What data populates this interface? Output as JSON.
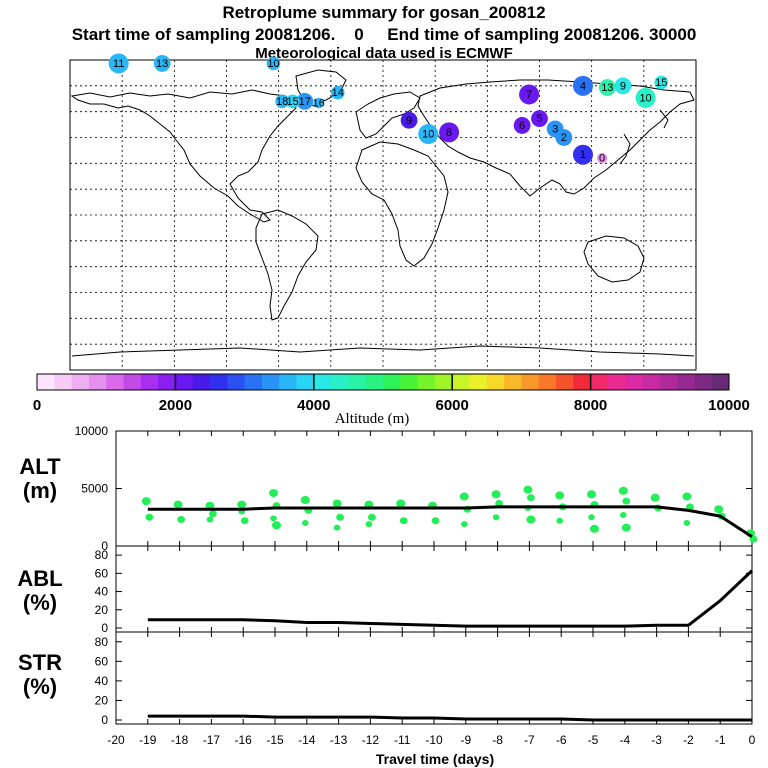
{
  "header": {
    "title": "Retroplume summary for gosan_200812",
    "line2": "Start time of sampling 20081206.    0     End time of sampling 20081206. 30000",
    "line3": "Meteorological data used is ECMWF"
  },
  "colors": {
    "marker_green": "#22ee55",
    "line": "#000000"
  },
  "chart_data": [
    {
      "type": "scatter",
      "name": "retroplume-map",
      "title": "Retroplume summary for gosan_200812",
      "description_of_points": "cluster centroids labelled by days back",
      "points": [
        {
          "label": "11",
          "lon": -152,
          "lat": 88,
          "alt": 3500,
          "size": 5
        },
        {
          "label": "13",
          "lon": -127,
          "lat": 88,
          "alt": 3600,
          "size": 4
        },
        {
          "label": "10",
          "lon": -63,
          "lat": 88,
          "alt": 3700,
          "size": 3
        },
        {
          "label": "14",
          "lon": -26,
          "lat": 71,
          "alt": 3700,
          "size": 3
        },
        {
          "label": "17",
          "lon": -45,
          "lat": 66,
          "alt": 3400,
          "size": 4
        },
        {
          "label": "15",
          "lon": -52,
          "lat": 66,
          "alt": 3800,
          "size": 3
        },
        {
          "label": "18",
          "lon": -58,
          "lat": 66,
          "alt": 3500,
          "size": 3
        },
        {
          "label": "16",
          "lon": -37,
          "lat": 65,
          "alt": 3600,
          "size": 2
        },
        {
          "label": "9",
          "lon": 15,
          "lat": 55,
          "alt": 2400,
          "size": 4
        },
        {
          "label": "10",
          "lon": 26,
          "lat": 47,
          "alt": 3600,
          "size": 5
        },
        {
          "label": "8",
          "lon": 38,
          "lat": 48,
          "alt": 2000,
          "size": 5
        },
        {
          "label": "7",
          "lon": 84,
          "lat": 70,
          "alt": 2000,
          "size": 5
        },
        {
          "label": "6",
          "lon": 80,
          "lat": 52,
          "alt": 2000,
          "size": 4
        },
        {
          "label": "5",
          "lon": 90,
          "lat": 56,
          "alt": 2100,
          "size": 4
        },
        {
          "label": "4",
          "lon": 115,
          "lat": 75,
          "alt": 3000,
          "size": 5
        },
        {
          "label": "3",
          "lon": 99,
          "lat": 50,
          "alt": 3300,
          "size": 4
        },
        {
          "label": "2",
          "lon": 104,
          "lat": 45,
          "alt": 3400,
          "size": 4
        },
        {
          "label": "1",
          "lon": 115,
          "lat": 35,
          "alt": 2500,
          "size": 5
        },
        {
          "label": "0",
          "lon": 126,
          "lat": 33,
          "alt": 900,
          "size": 2
        },
        {
          "label": "13",
          "lon": 129,
          "lat": 74,
          "alt": 4600,
          "size": 4
        },
        {
          "label": "9",
          "lon": 138,
          "lat": 75,
          "alt": 4200,
          "size": 4
        },
        {
          "label": "10",
          "lon": 151,
          "lat": 68,
          "alt": 4300,
          "size": 5
        },
        {
          "label": "15",
          "lon": 160,
          "lat": 77,
          "alt": 4200,
          "size": 3
        }
      ],
      "colorbar": {
        "ticks": [
          "0",
          "2000",
          "4000",
          "6000",
          "8000",
          "10000"
        ],
        "title": "Altitude (m)",
        "range": [
          0,
          10000
        ]
      }
    },
    {
      "type": "scatter",
      "name": "alt-panel",
      "ylabel": "ALT\n(m)",
      "ylabel_lines": [
        "ALT",
        "(m)"
      ],
      "ylim": [
        0,
        10000
      ],
      "yticks": [
        "10000",
        "5000",
        "0"
      ],
      "x": [
        -19,
        -18,
        -17,
        -16,
        -15,
        -14,
        -13,
        -12,
        -11,
        -10,
        -9,
        -8,
        -7,
        -6,
        -5,
        -4,
        -3,
        -2,
        -1,
        0
      ],
      "mean": [
        3200,
        3200,
        3200,
        3200,
        3300,
        3300,
        3300,
        3300,
        3300,
        3300,
        3300,
        3400,
        3400,
        3400,
        3400,
        3400,
        3400,
        3100,
        2600,
        800
      ],
      "scatter_clusters": [
        {
          "x": -19,
          "alts": [
            3900,
            2500
          ]
        },
        {
          "x": -18,
          "alts": [
            3600,
            2300
          ]
        },
        {
          "x": -17,
          "alts": [
            3500,
            2800,
            2300
          ]
        },
        {
          "x": -16,
          "alts": [
            3600,
            2200,
            3000
          ]
        },
        {
          "x": -15,
          "alts": [
            4600,
            3500,
            2400,
            1800
          ]
        },
        {
          "x": -14,
          "alts": [
            4000,
            3100,
            2000
          ]
        },
        {
          "x": -13,
          "alts": [
            3700,
            2500,
            1600
          ]
        },
        {
          "x": -12,
          "alts": [
            3600,
            2500,
            1900
          ]
        },
        {
          "x": -11,
          "alts": [
            3700,
            2200
          ]
        },
        {
          "x": -10,
          "alts": [
            3500,
            2200
          ]
        },
        {
          "x": -9,
          "alts": [
            4300,
            3200,
            1900
          ]
        },
        {
          "x": -8,
          "alts": [
            4500,
            3700,
            2500
          ]
        },
        {
          "x": -7,
          "alts": [
            4900,
            4200,
            3300,
            2300
          ]
        },
        {
          "x": -6,
          "alts": [
            4400,
            3400,
            2200
          ]
        },
        {
          "x": -5,
          "alts": [
            4500,
            3600,
            2500,
            1500
          ]
        },
        {
          "x": -4,
          "alts": [
            4800,
            3900,
            2700,
            1600
          ]
        },
        {
          "x": -3,
          "alts": [
            4200,
            3300
          ]
        },
        {
          "x": -2,
          "alts": [
            4300,
            3400,
            2000
          ]
        },
        {
          "x": -1,
          "alts": [
            3200,
            2600
          ]
        },
        {
          "x": 0,
          "alts": [
            1100,
            600
          ]
        }
      ]
    },
    {
      "type": "line",
      "name": "abl-panel",
      "ylabel": "ABL\n(%)",
      "ylabel_lines": [
        "ABL",
        "(%)"
      ],
      "ylim": [
        0,
        90
      ],
      "yticks": [
        "80",
        "60",
        "40",
        "20",
        "0"
      ],
      "x": [
        -19,
        -18,
        -17,
        -16,
        -15,
        -14,
        -13,
        -12,
        -11,
        -10,
        -9,
        -8,
        -7,
        -6,
        -5,
        -4,
        -3,
        -2,
        -1,
        0
      ],
      "values": [
        9,
        9,
        9,
        9,
        8,
        6,
        6,
        5,
        4,
        3,
        2,
        2,
        2,
        2,
        2,
        2,
        3,
        3,
        30,
        63
      ]
    },
    {
      "type": "line",
      "name": "str-panel",
      "ylabel": "STR\n(%)",
      "ylabel_lines": [
        "STR",
        "(%)"
      ],
      "ylim": [
        0,
        90
      ],
      "yticks": [
        "80",
        "60",
        "40",
        "20",
        "0"
      ],
      "x": [
        -19,
        -18,
        -17,
        -16,
        -15,
        -14,
        -13,
        -12,
        -11,
        -10,
        -9,
        -8,
        -7,
        -6,
        -5,
        -4,
        -3,
        -2,
        -1,
        0
      ],
      "values": [
        4,
        4,
        4,
        4,
        3,
        3,
        3,
        3,
        2,
        2,
        1,
        1,
        1,
        1,
        0,
        0,
        0,
        0,
        0,
        0
      ]
    }
  ],
  "x_axis": {
    "ticks": [
      "-20",
      "-19",
      "-18",
      "-17",
      "-16",
      "-15",
      "-14",
      "-13",
      "-12",
      "-11",
      "-10",
      "-9",
      "-8",
      "-7",
      "-6",
      "-5",
      "-4",
      "-3",
      "-2",
      "-1",
      "0"
    ],
    "title": "Travel time (days)"
  }
}
